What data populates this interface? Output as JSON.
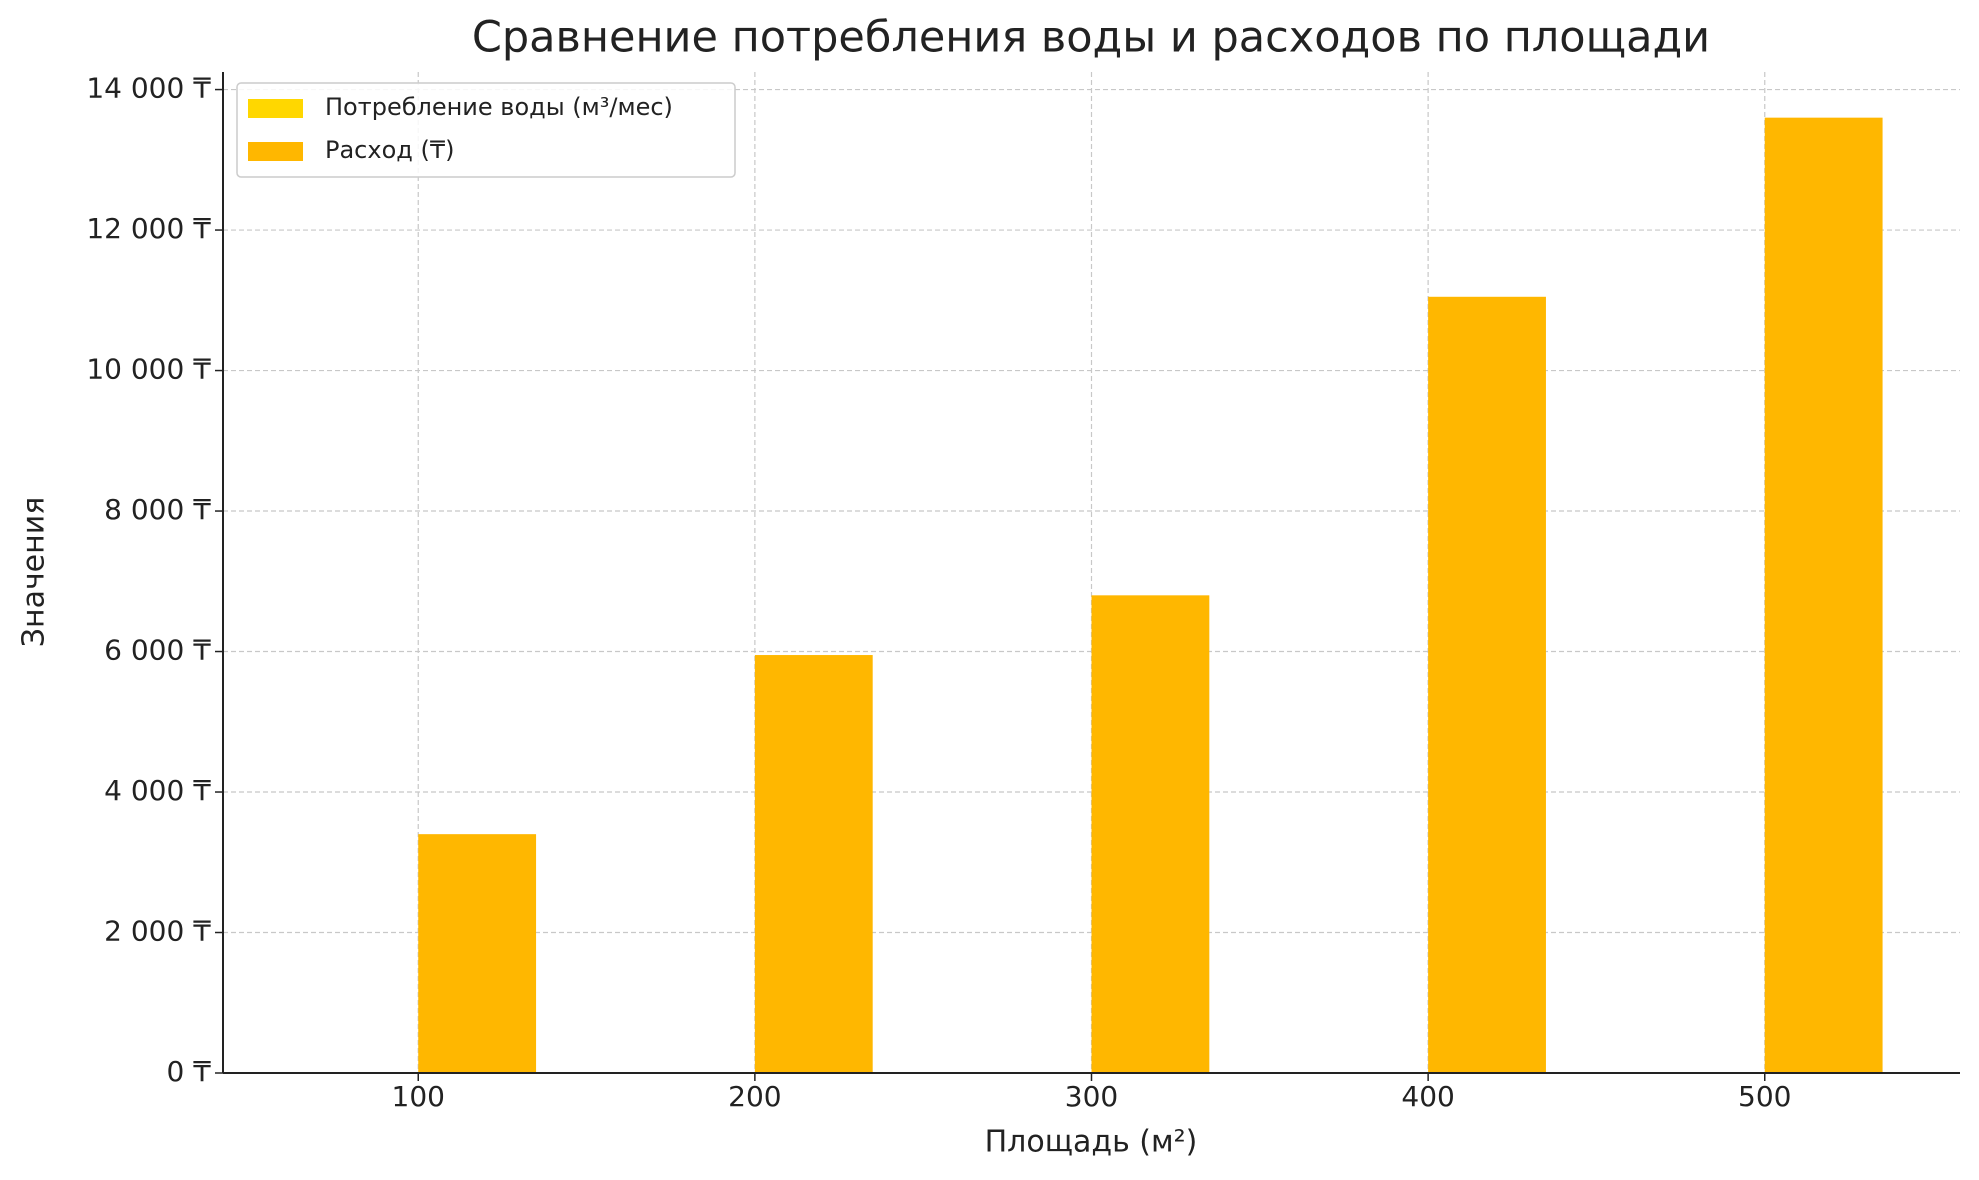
{
  "chart_data": {
    "type": "bar",
    "title": "Сравнение потребления воды и расходов по площади",
    "x_label": "Площадь (м²)",
    "y_label": "Значения",
    "x": [
      100,
      200,
      300,
      400,
      500
    ],
    "series": [
      {
        "name": "Потребление воды (м³/мес)",
        "color": "#FFD700",
        "values": [
          0,
          0,
          0,
          0,
          0
        ]
      },
      {
        "name": "Расход (₸)",
        "color": "#FFB700",
        "values": [
          3400,
          5950,
          6800,
          11050,
          13600
        ]
      }
    ],
    "xlim": [
      42,
      558
    ],
    "xticks": [
      100,
      200,
      300,
      400,
      500
    ],
    "ylim": [
      0,
      14250
    ],
    "yticks": [
      {
        "value": 0,
        "label": "0 ₸"
      },
      {
        "value": 2000,
        "label": "2 000 ₸"
      },
      {
        "value": 4000,
        "label": "4 000 ₸"
      },
      {
        "value": 6000,
        "label": "6 000 ₸"
      },
      {
        "value": 8000,
        "label": "8 000 ₸"
      },
      {
        "value": 10000,
        "label": "10 000 ₸"
      },
      {
        "value": 12000,
        "label": "12 000 ₸"
      },
      {
        "value": 14000,
        "label": "14 000 ₸"
      }
    ],
    "grid": true,
    "legend": "upper left"
  }
}
